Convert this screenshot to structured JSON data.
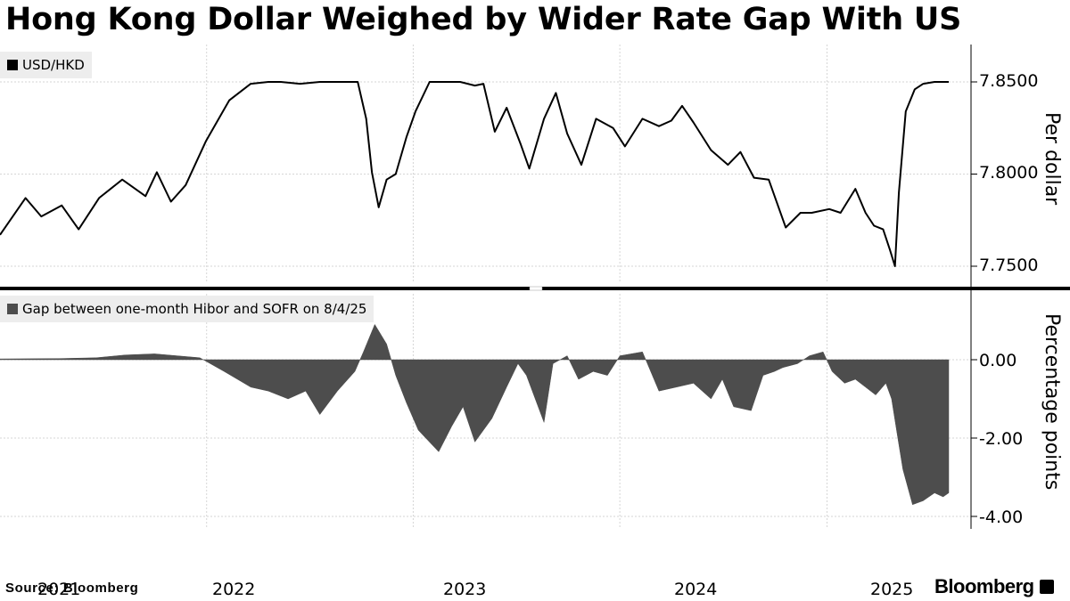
{
  "title": "Hong Kong Dollar Weighed by Wider Rate Gap With US",
  "source": "Source: Bloomberg",
  "brand": "Bloomberg",
  "colors": {
    "line": "#000000",
    "area": "#4d4d4d",
    "grid": "#d6d6d6",
    "legend_bg": "#ededed"
  },
  "chart_data": [
    {
      "type": "line",
      "legend": "USD/HKD",
      "unit_label": "Per dollar",
      "ylim": [
        7.745,
        7.865
      ],
      "yticks": [
        "7.8500",
        "7.8000",
        "7.7500"
      ],
      "ytick_values": [
        7.85,
        7.8,
        7.75
      ],
      "x_start": "2021-01-01",
      "x_end": "2025-08-04",
      "xticks": [
        "2021",
        "2022",
        "2023",
        "2024",
        "2025"
      ],
      "series": [
        {
          "x": [
            "2021-01-01",
            "2021-02-15",
            "2021-03-15",
            "2021-04-20",
            "2021-05-20",
            "2021-06-25",
            "2021-08-05",
            "2021-09-15",
            "2021-10-05",
            "2021-10-30",
            "2021-11-25",
            "2021-12-31",
            "2022-02-10",
            "2022-03-20",
            "2022-04-20",
            "2022-05-12",
            "2022-06-15",
            "2022-07-20",
            "2022-08-25",
            "2022-09-25",
            "2022-10-10",
            "2022-10-20",
            "2022-11-01",
            "2022-11-15",
            "2022-12-01",
            "2022-12-20",
            "2023-01-05",
            "2023-01-30",
            "2023-02-25",
            "2023-03-25",
            "2023-04-20",
            "2023-05-05",
            "2023-05-25",
            "2023-06-15",
            "2023-07-10",
            "2023-07-25",
            "2023-08-20",
            "2023-09-10",
            "2023-09-30",
            "2023-10-25",
            "2023-11-20",
            "2023-12-20",
            "2024-01-10",
            "2024-02-10",
            "2024-03-10",
            "2024-04-01",
            "2024-04-20",
            "2024-05-10",
            "2024-06-10",
            "2024-07-10",
            "2024-08-01",
            "2024-08-25",
            "2024-09-20",
            "2024-10-20",
            "2024-11-15",
            "2024-12-05",
            "2025-01-05",
            "2025-01-25",
            "2025-02-20",
            "2025-03-10",
            "2025-03-25",
            "2025-04-10",
            "2025-04-22",
            "2025-05-01",
            "2025-05-08",
            "2025-05-20",
            "2025-06-05",
            "2025-06-20",
            "2025-07-10",
            "2025-08-04"
          ],
          "values": [
            7.767,
            7.787,
            7.777,
            7.783,
            7.77,
            7.787,
            7.797,
            7.788,
            7.801,
            7.785,
            7.794,
            7.818,
            7.84,
            7.849,
            7.85,
            7.85,
            7.849,
            7.85,
            7.85,
            7.85,
            7.83,
            7.801,
            7.782,
            7.797,
            7.8,
            7.82,
            7.834,
            7.85,
            7.85,
            7.85,
            7.848,
            7.849,
            7.823,
            7.836,
            7.816,
            7.803,
            7.83,
            7.844,
            7.822,
            7.805,
            7.83,
            7.825,
            7.815,
            7.83,
            7.826,
            7.829,
            7.837,
            7.828,
            7.813,
            7.805,
            7.812,
            7.798,
            7.797,
            7.771,
            7.779,
            7.779,
            7.781,
            7.779,
            7.792,
            7.779,
            7.772,
            7.77,
            7.759,
            7.75,
            7.79,
            7.834,
            7.846,
            7.849,
            7.85,
            7.85
          ]
        }
      ]
    },
    {
      "type": "area",
      "legend": "Gap between one-month Hibor and SOFR on 8/4/25",
      "unit_label": "Percentage points",
      "ylim": [
        -4.2,
        1.5
      ],
      "yticks": [
        "0.00",
        "-2.00",
        "-4.00"
      ],
      "ytick_values": [
        0,
        -2,
        -4
      ],
      "x_start": "2021-01-01",
      "x_end": "2025-08-04",
      "xticks": [
        "2021",
        "2022",
        "2023",
        "2024",
        "2025"
      ],
      "series": [
        {
          "x": [
            "2021-01-01",
            "2021-04-15",
            "2021-06-20",
            "2021-08-10",
            "2021-10-01",
            "2021-11-10",
            "2021-12-20",
            "2022-02-01",
            "2022-03-20",
            "2022-04-20",
            "2022-05-25",
            "2022-06-25",
            "2022-07-20",
            "2022-08-20",
            "2022-09-20",
            "2022-10-05",
            "2022-10-25",
            "2022-11-15",
            "2022-12-01",
            "2022-12-20",
            "2023-01-10",
            "2023-02-15",
            "2023-03-10",
            "2023-03-30",
            "2023-04-20",
            "2023-05-20",
            "2023-06-15",
            "2023-07-05",
            "2023-07-20",
            "2023-08-20",
            "2023-09-05",
            "2023-09-30",
            "2023-10-20",
            "2023-11-15",
            "2023-12-10",
            "2024-01-01",
            "2024-02-10",
            "2024-03-10",
            "2024-04-10",
            "2024-05-10",
            "2024-06-10",
            "2024-06-30",
            "2024-07-20",
            "2024-08-20",
            "2024-09-10",
            "2024-09-30",
            "2024-10-15",
            "2024-11-10",
            "2024-12-01",
            "2024-12-25",
            "2025-01-10",
            "2025-02-01",
            "2025-02-20",
            "2025-03-10",
            "2025-03-28",
            "2025-04-15",
            "2025-04-25",
            "2025-05-05",
            "2025-05-15",
            "2025-06-01",
            "2025-06-20",
            "2025-07-10",
            "2025-07-25",
            "2025-08-04"
          ],
          "values": [
            0.02,
            0.03,
            0.05,
            0.12,
            0.15,
            0.1,
            0.05,
            -0.3,
            -0.7,
            -0.8,
            -1.0,
            -0.8,
            -1.4,
            -0.8,
            -0.3,
            0.2,
            0.9,
            0.4,
            -0.4,
            -1.1,
            -1.8,
            -2.35,
            -1.7,
            -1.2,
            -2.1,
            -1.5,
            -0.7,
            -0.1,
            -0.4,
            -1.6,
            -0.1,
            0.1,
            -0.5,
            -0.3,
            -0.4,
            0.1,
            0.2,
            -0.8,
            -0.7,
            -0.6,
            -1.0,
            -0.5,
            -1.2,
            -1.3,
            -0.4,
            -0.3,
            -0.2,
            -0.1,
            0.1,
            0.2,
            -0.3,
            -0.6,
            -0.5,
            -0.7,
            -0.9,
            -0.6,
            -1.0,
            -1.9,
            -2.8,
            -3.7,
            -3.6,
            -3.4,
            -3.5,
            -3.4
          ]
        }
      ]
    }
  ]
}
